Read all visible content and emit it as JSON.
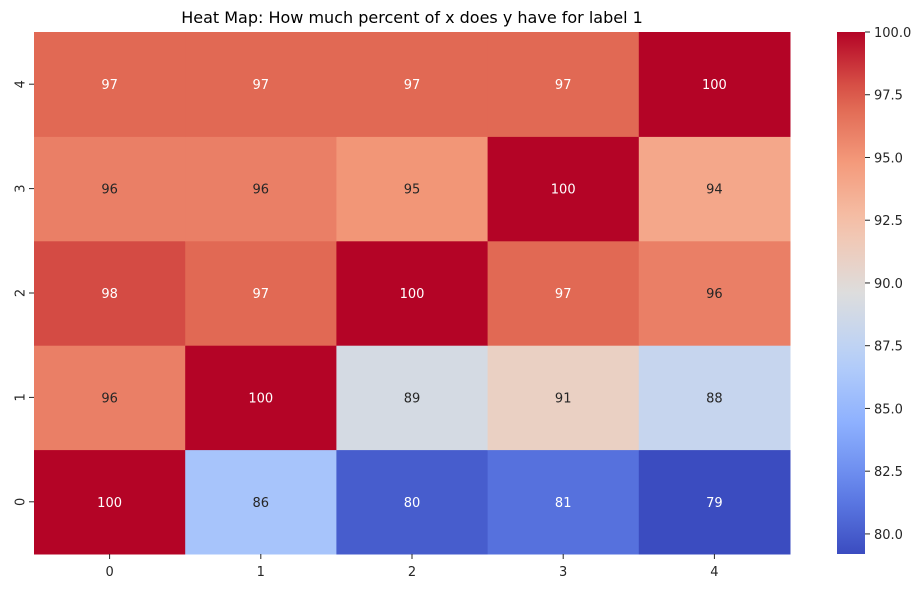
{
  "chart_data": {
    "type": "heatmap",
    "title": "Heat Map: How much percent of x does y have for label 1",
    "xlabel": "",
    "ylabel": "",
    "x_categories": [
      "0",
      "1",
      "2",
      "3",
      "4"
    ],
    "y_categories": [
      "0",
      "1",
      "2",
      "3",
      "4"
    ],
    "y_order": "bottom-to-top",
    "values": [
      [
        100,
        86,
        80,
        81,
        79
      ],
      [
        96,
        100,
        89,
        91,
        88
      ],
      [
        98,
        97,
        100,
        97,
        96
      ],
      [
        96,
        96,
        95,
        100,
        94
      ],
      [
        97,
        97,
        97,
        97,
        100
      ]
    ],
    "colormap": "coolwarm",
    "color_low": "#3b4cc0",
    "color_mid": "#dddddd",
    "color_high": "#b40426",
    "colorbar": {
      "min": 79.2,
      "max": 100,
      "ticks": [
        "80.0",
        "82.5",
        "85.0",
        "87.5",
        "90.0",
        "92.5",
        "95.0",
        "97.5",
        "100.0"
      ]
    },
    "annotations": true,
    "grid": false
  }
}
